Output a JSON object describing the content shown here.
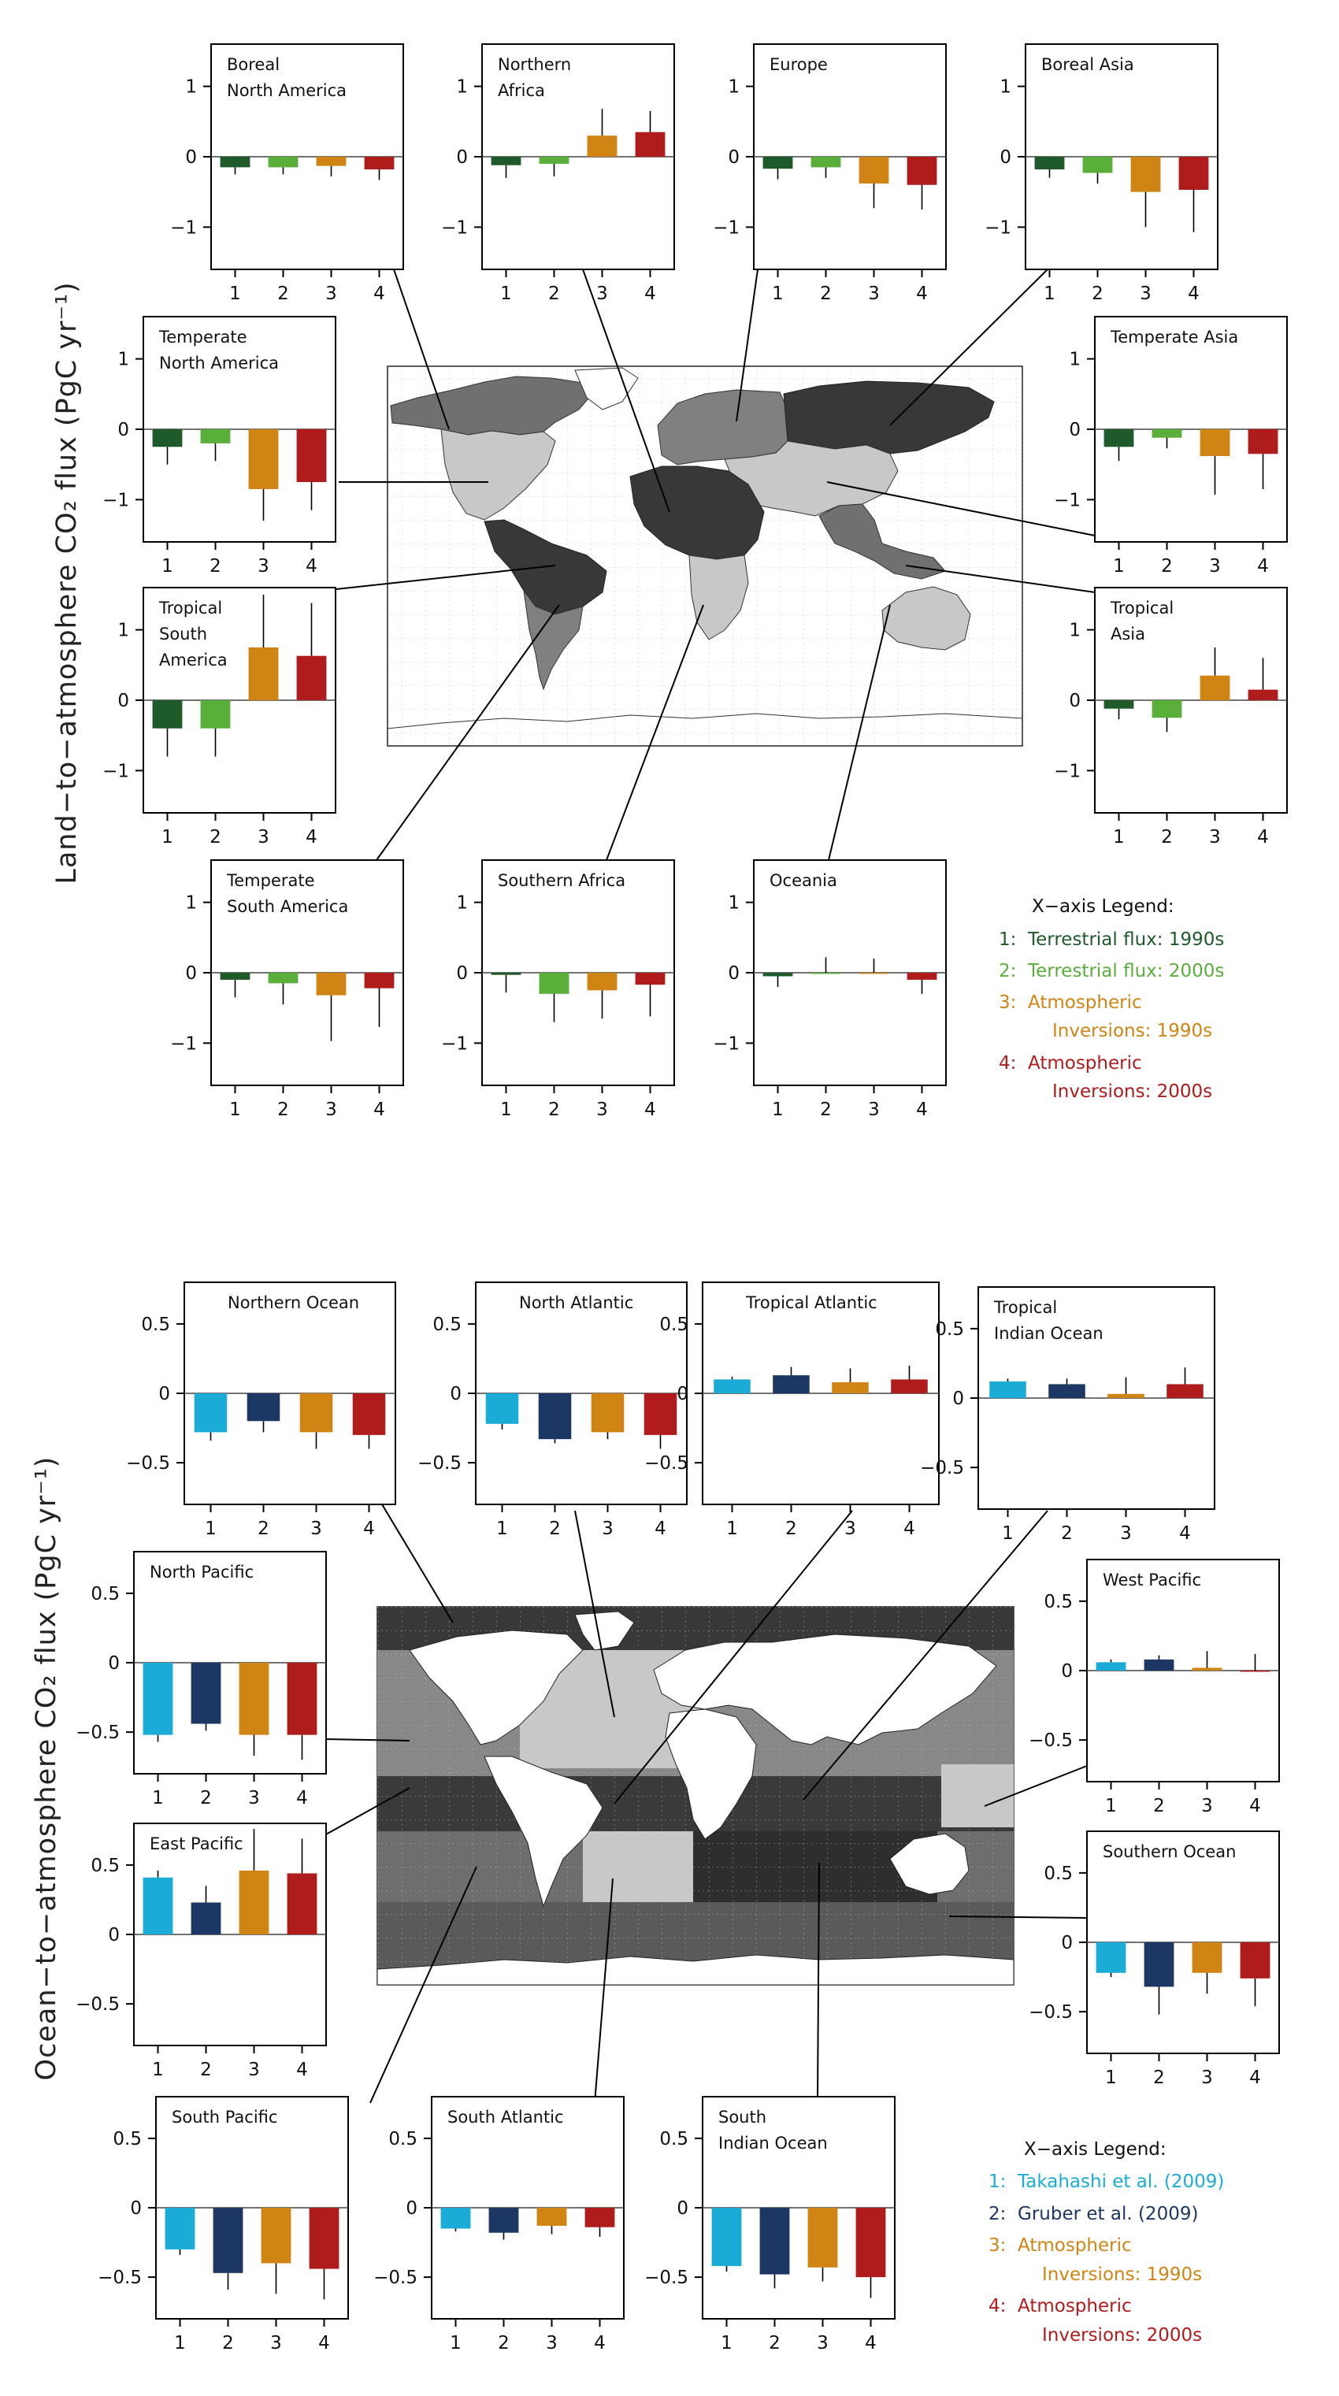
{
  "land": {
    "ylabel": "Land−to−atmosphere CO₂ flux (PgC yr⁻¹)",
    "legend_title": "X−axis Legend:",
    "legend": [
      {
        "key": "1:",
        "lines": [
          "Terrestrial flux: 1990s"
        ],
        "color": "#1f5a2a"
      },
      {
        "key": "2:",
        "lines": [
          "Terrestrial flux: 2000s"
        ],
        "color": "#5aae3a"
      },
      {
        "key": "3:",
        "lines": [
          "Atmospheric",
          "Inversions: 1990s"
        ],
        "color": "#d08414"
      },
      {
        "key": "4:",
        "lines": [
          "Atmospheric",
          "Inversions: 2000s"
        ],
        "color": "#b01c1c"
      }
    ]
  },
  "ocean": {
    "ylabel": "Ocean−to−atmosphere CO₂ flux (PgC yr⁻¹)",
    "legend_title": "X−axis Legend:",
    "legend": [
      {
        "key": "1:",
        "lines": [
          "Takahashi et al. (2009)"
        ],
        "color": "#1aacd6"
      },
      {
        "key": "2:",
        "lines": [
          "Gruber et al. (2009)"
        ],
        "color": "#1c3763"
      },
      {
        "key": "3:",
        "lines": [
          "Atmospheric",
          "Inversions: 1990s"
        ],
        "color": "#d08414"
      },
      {
        "key": "4:",
        "lines": [
          "Atmospheric",
          "Inversions: 2000s"
        ],
        "color": "#b01c1c"
      }
    ]
  },
  "chart_data": [
    {
      "type": "bar",
      "title": "Boreal North America",
      "title_lines": [
        "Boreal",
        "North America"
      ],
      "group": "land",
      "categories": [
        "1",
        "2",
        "3",
        "4"
      ],
      "values": [
        -0.15,
        -0.15,
        -0.13,
        -0.18
      ],
      "errors": [
        0.1,
        0.1,
        0.15,
        0.15
      ],
      "ylim": [
        -1.6,
        1.6
      ],
      "yticks": [
        1,
        0,
        -1
      ],
      "ytick_labels": [
        "1",
        "0",
        "−1"
      ]
    },
    {
      "type": "bar",
      "title": "Northern Africa",
      "title_lines": [
        "Northern",
        "Africa"
      ],
      "group": "land",
      "categories": [
        "1",
        "2",
        "3",
        "4"
      ],
      "values": [
        -0.12,
        -0.1,
        0.3,
        0.35
      ],
      "errors": [
        0.18,
        0.18,
        0.38,
        0.3
      ],
      "ylim": [
        -1.6,
        1.6
      ],
      "yticks": [
        1,
        0,
        -1
      ],
      "ytick_labels": [
        "1",
        "0",
        "−1"
      ]
    },
    {
      "type": "bar",
      "title": "Europe",
      "title_lines": [
        "Europe"
      ],
      "group": "land",
      "categories": [
        "1",
        "2",
        "3",
        "4"
      ],
      "values": [
        -0.17,
        -0.15,
        -0.38,
        -0.4
      ],
      "errors": [
        0.15,
        0.15,
        0.35,
        0.35
      ],
      "ylim": [
        -1.6,
        1.6
      ],
      "yticks": [
        1,
        0,
        -1
      ],
      "ytick_labels": [
        "1",
        "0",
        "−1"
      ]
    },
    {
      "type": "bar",
      "title": "Boreal Asia",
      "title_lines": [
        "Boreal Asia"
      ],
      "group": "land",
      "categories": [
        "1",
        "2",
        "3",
        "4"
      ],
      "values": [
        -0.18,
        -0.23,
        -0.5,
        -0.47
      ],
      "errors": [
        0.12,
        0.15,
        0.5,
        0.6
      ],
      "ylim": [
        -1.6,
        1.6
      ],
      "yticks": [
        1,
        0,
        -1
      ],
      "ytick_labels": [
        "1",
        "0",
        "−1"
      ]
    },
    {
      "type": "bar",
      "title": "Temperate North America",
      "title_lines": [
        "Temperate",
        "North America"
      ],
      "group": "land",
      "categories": [
        "1",
        "2",
        "3",
        "4"
      ],
      "values": [
        -0.25,
        -0.2,
        -0.85,
        -0.75
      ],
      "errors": [
        0.25,
        0.25,
        0.45,
        0.4
      ],
      "ylim": [
        -1.6,
        1.6
      ],
      "yticks": [
        1,
        0,
        -1
      ],
      "ytick_labels": [
        "1",
        "0",
        "−1"
      ]
    },
    {
      "type": "bar",
      "title": "Temperate Asia",
      "title_lines": [
        "Temperate Asia"
      ],
      "group": "land",
      "categories": [
        "1",
        "2",
        "3",
        "4"
      ],
      "values": [
        -0.25,
        -0.12,
        -0.38,
        -0.35
      ],
      "errors": [
        0.2,
        0.15,
        0.55,
        0.5
      ],
      "ylim": [
        -1.6,
        1.6
      ],
      "yticks": [
        1,
        0,
        -1
      ],
      "ytick_labels": [
        "1",
        "0",
        "−1"
      ]
    },
    {
      "type": "bar",
      "title": "Tropical South America",
      "title_lines": [
        "Tropical",
        "South",
        "America"
      ],
      "group": "land",
      "categories": [
        "1",
        "2",
        "3",
        "4"
      ],
      "values": [
        -0.4,
        -0.4,
        0.75,
        0.63
      ],
      "errors": [
        0.4,
        0.4,
        0.75,
        0.75
      ],
      "ylim": [
        -1.6,
        1.6
      ],
      "yticks": [
        1,
        0,
        -1
      ],
      "ytick_labels": [
        "1",
        "0",
        "−1"
      ]
    },
    {
      "type": "bar",
      "title": "Tropical Asia",
      "title_lines": [
        "Tropical",
        "Asia"
      ],
      "group": "land",
      "categories": [
        "1",
        "2",
        "3",
        "4"
      ],
      "values": [
        -0.12,
        -0.25,
        0.35,
        0.15
      ],
      "errors": [
        0.15,
        0.2,
        0.4,
        0.45
      ],
      "ylim": [
        -1.6,
        1.6
      ],
      "yticks": [
        1,
        0,
        -1
      ],
      "ytick_labels": [
        "1",
        "0",
        "−1"
      ]
    },
    {
      "type": "bar",
      "title": "Temperate South America",
      "title_lines": [
        "Temperate",
        "South America"
      ],
      "group": "land",
      "categories": [
        "1",
        "2",
        "3",
        "4"
      ],
      "values": [
        -0.1,
        -0.15,
        -0.32,
        -0.22
      ],
      "errors": [
        0.25,
        0.3,
        0.65,
        0.55
      ],
      "ylim": [
        -1.6,
        1.6
      ],
      "yticks": [
        1,
        0,
        -1
      ],
      "ytick_labels": [
        "1",
        "0",
        "−1"
      ]
    },
    {
      "type": "bar",
      "title": "Southern Africa",
      "title_lines": [
        "Southern Africa"
      ],
      "group": "land",
      "categories": [
        "1",
        "2",
        "3",
        "4"
      ],
      "values": [
        -0.03,
        -0.3,
        -0.25,
        -0.17
      ],
      "errors": [
        0.25,
        0.4,
        0.4,
        0.45
      ],
      "ylim": [
        -1.6,
        1.6
      ],
      "yticks": [
        1,
        0,
        -1
      ],
      "ytick_labels": [
        "1",
        "0",
        "−1"
      ]
    },
    {
      "type": "bar",
      "title": "Oceania",
      "title_lines": [
        "Oceania"
      ],
      "group": "land",
      "categories": [
        "1",
        "2",
        "3",
        "4"
      ],
      "values": [
        -0.05,
        0.0,
        0.0,
        -0.1
      ],
      "errors": [
        0.15,
        0.22,
        0.2,
        0.2
      ],
      "ylim": [
        -1.6,
        1.6
      ],
      "yticks": [
        1,
        0,
        -1
      ],
      "ytick_labels": [
        "1",
        "0",
        "−1"
      ]
    },
    {
      "type": "bar",
      "title": "Northern Ocean",
      "title_lines": [
        "Northern Ocean"
      ],
      "group": "ocean",
      "categories": [
        "1",
        "2",
        "3",
        "4"
      ],
      "values": [
        -0.28,
        -0.2,
        -0.28,
        -0.3
      ],
      "errors": [
        0.06,
        0.08,
        0.12,
        0.1
      ],
      "ylim": [
        -0.8,
        0.8
      ],
      "yticks": [
        0.5,
        0,
        -0.5
      ],
      "ytick_labels": [
        "0.5",
        "0",
        "−0.5"
      ]
    },
    {
      "type": "bar",
      "title": "North Atlantic",
      "title_lines": [
        "North Atlantic"
      ],
      "group": "ocean",
      "categories": [
        "1",
        "2",
        "3",
        "4"
      ],
      "values": [
        -0.22,
        -0.33,
        -0.28,
        -0.3
      ],
      "errors": [
        0.04,
        0.03,
        0.05,
        0.1
      ],
      "ylim": [
        -0.8,
        0.8
      ],
      "yticks": [
        0.5,
        0,
        -0.5
      ],
      "ytick_labels": [
        "0.5",
        "0",
        "−0.5"
      ]
    },
    {
      "type": "bar",
      "title": "Tropical Atlantic",
      "title_lines": [
        "Tropical Atlantic"
      ],
      "group": "ocean",
      "categories": [
        "1",
        "2",
        "3",
        "4"
      ],
      "values": [
        0.1,
        0.13,
        0.08,
        0.1
      ],
      "errors": [
        0.02,
        0.06,
        0.1,
        0.1
      ],
      "ylim": [
        -0.8,
        0.8
      ],
      "yticks": [
        0.5,
        0,
        -0.5
      ],
      "ytick_labels": [
        "0.5",
        "0",
        "−0.5"
      ]
    },
    {
      "type": "bar",
      "title": "Tropical Indian Ocean",
      "title_lines": [
        "Tropical",
        "Indian Ocean"
      ],
      "group": "ocean",
      "categories": [
        "1",
        "2",
        "3",
        "4"
      ],
      "values": [
        0.12,
        0.1,
        0.03,
        0.1
      ],
      "errors": [
        0.02,
        0.04,
        0.12,
        0.12
      ],
      "ylim": [
        -0.8,
        0.8
      ],
      "yticks": [
        0.5,
        0,
        -0.5
      ],
      "ytick_labels": [
        "0.5",
        "0",
        "−0.5"
      ]
    },
    {
      "type": "bar",
      "title": "North Pacific",
      "title_lines": [
        "North Pacific"
      ],
      "group": "ocean",
      "categories": [
        "1",
        "2",
        "3",
        "4"
      ],
      "values": [
        -0.52,
        -0.44,
        -0.52,
        -0.52
      ],
      "errors": [
        0.05,
        0.05,
        0.15,
        0.18
      ],
      "ylim": [
        -0.8,
        0.8
      ],
      "yticks": [
        0.5,
        0,
        -0.5
      ],
      "ytick_labels": [
        "0.5",
        "0",
        "−0.5"
      ]
    },
    {
      "type": "bar",
      "title": "West Pacific",
      "title_lines": [
        "West Pacific"
      ],
      "group": "ocean",
      "categories": [
        "1",
        "2",
        "3",
        "4"
      ],
      "values": [
        0.06,
        0.08,
        0.02,
        0.0
      ],
      "errors": [
        0.02,
        0.03,
        0.12,
        0.12
      ],
      "ylim": [
        -0.8,
        0.8
      ],
      "yticks": [
        0.5,
        0,
        -0.5
      ],
      "ytick_labels": [
        "0.5",
        "0",
        "−0.5"
      ]
    },
    {
      "type": "bar",
      "title": "East Pacific",
      "title_lines": [
        "East Pacific"
      ],
      "group": "ocean",
      "categories": [
        "1",
        "2",
        "3",
        "4"
      ],
      "values": [
        0.41,
        0.23,
        0.46,
        0.44
      ],
      "errors": [
        0.05,
        0.12,
        0.3,
        0.25
      ],
      "ylim": [
        -0.8,
        0.8
      ],
      "yticks": [
        0.5,
        0,
        -0.5
      ],
      "ytick_labels": [
        "0.5",
        "0",
        "−0.5"
      ]
    },
    {
      "type": "bar",
      "title": "Southern Ocean",
      "title_lines": [
        "Southern Ocean"
      ],
      "group": "ocean",
      "categories": [
        "1",
        "2",
        "3",
        "4"
      ],
      "values": [
        -0.22,
        -0.32,
        -0.22,
        -0.26
      ],
      "errors": [
        0.03,
        0.2,
        0.15,
        0.2
      ],
      "ylim": [
        -0.8,
        0.8
      ],
      "yticks": [
        0.5,
        0,
        -0.5
      ],
      "ytick_labels": [
        "0.5",
        "0",
        "−0.5"
      ]
    },
    {
      "type": "bar",
      "title": "South Pacific",
      "title_lines": [
        "South Pacific"
      ],
      "group": "ocean",
      "categories": [
        "1",
        "2",
        "3",
        "4"
      ],
      "values": [
        -0.3,
        -0.47,
        -0.4,
        -0.44
      ],
      "errors": [
        0.04,
        0.12,
        0.22,
        0.22
      ],
      "ylim": [
        -0.8,
        0.8
      ],
      "yticks": [
        0.5,
        0,
        -0.5
      ],
      "ytick_labels": [
        "0.5",
        "0",
        "−0.5"
      ]
    },
    {
      "type": "bar",
      "title": "South Atlantic",
      "title_lines": [
        "South Atlantic"
      ],
      "group": "ocean",
      "categories": [
        "1",
        "2",
        "3",
        "4"
      ],
      "values": [
        -0.15,
        -0.18,
        -0.13,
        -0.14
      ],
      "errors": [
        0.02,
        0.05,
        0.06,
        0.07
      ],
      "ylim": [
        -0.8,
        0.8
      ],
      "yticks": [
        0.5,
        0,
        -0.5
      ],
      "ytick_labels": [
        "0.5",
        "0",
        "−0.5"
      ]
    },
    {
      "type": "bar",
      "title": "South Indian Ocean",
      "title_lines": [
        "South",
        "Indian Ocean"
      ],
      "group": "ocean",
      "categories": [
        "1",
        "2",
        "3",
        "4"
      ],
      "values": [
        -0.42,
        -0.48,
        -0.43,
        -0.5
      ],
      "errors": [
        0.04,
        0.1,
        0.1,
        0.15
      ],
      "ylim": [
        -0.8,
        0.8
      ],
      "yticks": [
        0.5,
        0,
        -0.5
      ],
      "ytick_labels": [
        "0.5",
        "0",
        "−0.5"
      ]
    }
  ]
}
